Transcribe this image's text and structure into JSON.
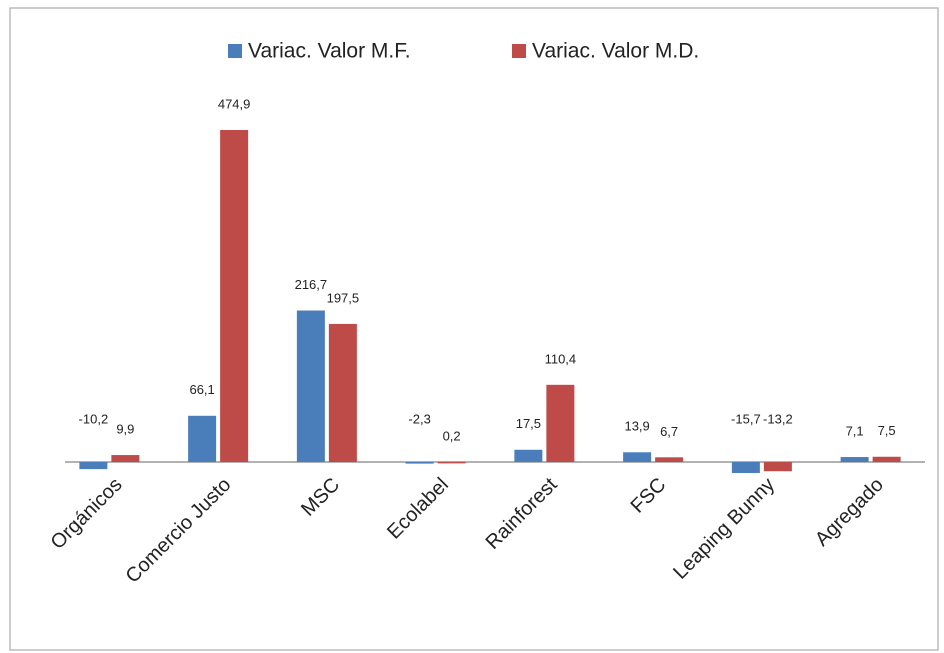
{
  "chart_data": {
    "type": "bar",
    "categories": [
      "Orgánicos",
      "Comercio Justo",
      "MSC",
      "Ecolabel",
      "Rainforest",
      "FSC",
      "Leaping Bunny",
      "Agregado"
    ],
    "series": [
      {
        "name": "Variac. Valor M.F.",
        "color": "#4a7ebb",
        "values": [
          -10.2,
          66.1,
          216.7,
          -2.3,
          17.5,
          13.9,
          -15.7,
          7.1
        ],
        "value_labels": [
          "-10,2",
          "66,1",
          "216,7",
          "-2,3",
          "17,5",
          "13,9",
          "-15,7",
          "7,1"
        ]
      },
      {
        "name": "Variac. Valor M.D.",
        "color": "#be4b48",
        "values": [
          9.9,
          474.9,
          197.5,
          0.2,
          110.4,
          6.7,
          -13.2,
          7.5
        ],
        "value_labels": [
          "9,9",
          "474,9",
          "197,5",
          "0,2",
          "110,4",
          "6,7",
          "-13,2",
          "7,5"
        ]
      }
    ],
    "legend": "top"
  }
}
